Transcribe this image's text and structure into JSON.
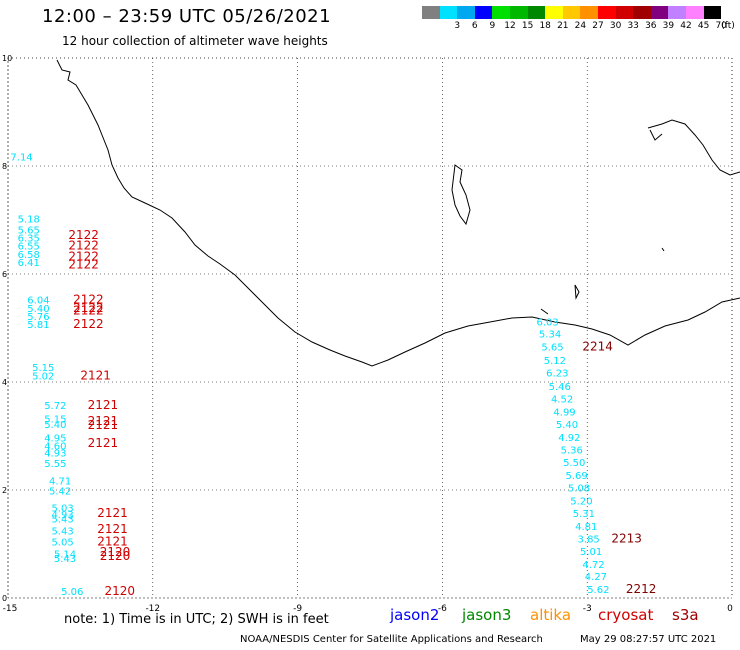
{
  "header": {
    "title": "12:00 – 23:59 UTC 05/26/2021",
    "subtitle": "12 hour collection of altimeter wave heights"
  },
  "color_scale": {
    "unit_label": "(ft)",
    "bins": [
      {
        "label": "",
        "color": "#808080"
      },
      {
        "label": "3",
        "color": "#00e0ff"
      },
      {
        "label": "6",
        "color": "#00a8f0"
      },
      {
        "label": "9",
        "color": "#0000ff"
      },
      {
        "label": "12",
        "color": "#00e000"
      },
      {
        "label": "15",
        "color": "#00b800"
      },
      {
        "label": "18",
        "color": "#008800"
      },
      {
        "label": "21",
        "color": "#ffff00"
      },
      {
        "label": "24",
        "color": "#ffc800"
      },
      {
        "label": "27",
        "color": "#ff9000"
      },
      {
        "label": "30",
        "color": "#ff0000"
      },
      {
        "label": "33",
        "color": "#d00000"
      },
      {
        "label": "36",
        "color": "#a00000"
      },
      {
        "label": "39",
        "color": "#800080"
      },
      {
        "label": "42",
        "color": "#c080ff"
      },
      {
        "label": "45",
        "color": "#ff80ff"
      },
      {
        "label": "70",
        "color": "#000000"
      }
    ]
  },
  "map": {
    "x_axis_ticks": [
      "-15",
      "-12",
      "-9",
      "-6",
      "-3",
      "0"
    ],
    "y_axis_ticks": [
      "0",
      "2",
      "4",
      "6",
      "8",
      "10"
    ],
    "grid": true
  },
  "observations": {
    "left_track_values": [
      {
        "v": "7.14",
        "lon": -14.95,
        "lat": 8.1
      },
      {
        "v": "5.18",
        "lon": -14.8,
        "lat": 6.95
      },
      {
        "v": "5.65",
        "lon": -14.8,
        "lat": 6.75
      },
      {
        "v": "6.35",
        "lon": -14.8,
        "lat": 6.6
      },
      {
        "v": "6.55",
        "lon": -14.8,
        "lat": 6.45
      },
      {
        "v": "6.58",
        "lon": -14.8,
        "lat": 6.3
      },
      {
        "v": "6.41",
        "lon": -14.8,
        "lat": 6.15
      },
      {
        "v": "6.04",
        "lon": -14.6,
        "lat": 5.45
      },
      {
        "v": "5.40",
        "lon": -14.6,
        "lat": 5.3
      },
      {
        "v": "5.76",
        "lon": -14.6,
        "lat": 5.15
      },
      {
        "v": "5.81",
        "lon": -14.6,
        "lat": 5.0
      },
      {
        "v": "5.15",
        "lon": -14.5,
        "lat": 4.2
      },
      {
        "v": "5.02",
        "lon": -14.5,
        "lat": 4.05
      },
      {
        "v": "5.72",
        "lon": -14.25,
        "lat": 3.5
      },
      {
        "v": "5.15",
        "lon": -14.25,
        "lat": 3.25
      },
      {
        "v": "5.40",
        "lon": -14.25,
        "lat": 3.15
      },
      {
        "v": "4.95",
        "lon": -14.25,
        "lat": 2.9
      },
      {
        "v": "4.60",
        "lon": -14.25,
        "lat": 2.75
      },
      {
        "v": "4.93",
        "lon": -14.25,
        "lat": 2.62
      },
      {
        "v": "5.55",
        "lon": -14.25,
        "lat": 2.43
      },
      {
        "v": "4.71",
        "lon": -14.15,
        "lat": 2.1
      },
      {
        "v": "5.42",
        "lon": -14.15,
        "lat": 1.92
      },
      {
        "v": "5.03",
        "lon": -14.1,
        "lat": 1.6
      },
      {
        "v": "4.93",
        "lon": -14.1,
        "lat": 1.48
      },
      {
        "v": "5.43",
        "lon": -14.1,
        "lat": 1.4
      },
      {
        "v": "5.43",
        "lon": -14.1,
        "lat": 1.18
      },
      {
        "v": "5.05",
        "lon": -14.1,
        "lat": 0.97
      },
      {
        "v": "5.14",
        "lon": -14.05,
        "lat": 0.75
      },
      {
        "v": "5.43",
        "lon": -14.05,
        "lat": 0.67
      },
      {
        "v": "5.06",
        "lon": -13.9,
        "lat": 0.06
      }
    ],
    "left_track_times": [
      {
        "t": "2122",
        "lon": -13.75,
        "lat": 6.65
      },
      {
        "t": "2122",
        "lon": -13.75,
        "lat": 6.45
      },
      {
        "t": "2122",
        "lon": -13.75,
        "lat": 6.25
      },
      {
        "t": "2122",
        "lon": -13.75,
        "lat": 6.1
      },
      {
        "t": "2122",
        "lon": -13.65,
        "lat": 5.45
      },
      {
        "t": "2122",
        "lon": -13.65,
        "lat": 5.3
      },
      {
        "t": "2122",
        "lon": -13.65,
        "lat": 5.25
      },
      {
        "t": "2122",
        "lon": -13.65,
        "lat": 5.0
      },
      {
        "t": "2121",
        "lon": -13.5,
        "lat": 4.05
      },
      {
        "t": "2121",
        "lon": -13.35,
        "lat": 3.5
      },
      {
        "t": "2121",
        "lon": -13.35,
        "lat": 3.2
      },
      {
        "t": "2121",
        "lon": -13.35,
        "lat": 3.13
      },
      {
        "t": "2121",
        "lon": -13.35,
        "lat": 2.8
      },
      {
        "t": "2121",
        "lon": -13.15,
        "lat": 1.5
      },
      {
        "t": "2121",
        "lon": -13.15,
        "lat": 1.2
      },
      {
        "t": "2121",
        "lon": -13.15,
        "lat": 0.97
      },
      {
        "t": "2120",
        "lon": -13.1,
        "lat": 0.78
      },
      {
        "t": "2120",
        "lon": -13.1,
        "lat": 0.7
      },
      {
        "t": "2120",
        "lon": -13.0,
        "lat": 0.06
      }
    ],
    "right_track_values": [
      {
        "v": "6.03",
        "lon": -4.05,
        "lat": 5.05
      },
      {
        "v": "5.34",
        "lon": -4.0,
        "lat": 4.82
      },
      {
        "v": "5.65",
        "lon": -3.95,
        "lat": 4.58
      },
      {
        "v": "5.12",
        "lon": -3.9,
        "lat": 4.33
      },
      {
        "v": "6.23",
        "lon": -3.85,
        "lat": 4.1
      },
      {
        "v": "5.46",
        "lon": -3.8,
        "lat": 3.85
      },
      {
        "v": "4.52",
        "lon": -3.75,
        "lat": 3.62
      },
      {
        "v": "4.99",
        "lon": -3.7,
        "lat": 3.38
      },
      {
        "v": "5.40",
        "lon": -3.65,
        "lat": 3.15
      },
      {
        "v": "4.92",
        "lon": -3.6,
        "lat": 2.91
      },
      {
        "v": "5.36",
        "lon": -3.55,
        "lat": 2.68
      },
      {
        "v": "5.50",
        "lon": -3.5,
        "lat": 2.44
      },
      {
        "v": "5.69",
        "lon": -3.45,
        "lat": 2.2
      },
      {
        "v": "5.08",
        "lon": -3.4,
        "lat": 1.97
      },
      {
        "v": "5.20",
        "lon": -3.35,
        "lat": 1.73
      },
      {
        "v": "5.31",
        "lon": -3.3,
        "lat": 1.5
      },
      {
        "v": "4.81",
        "lon": -3.25,
        "lat": 1.26
      },
      {
        "v": "3.85",
        "lon": -3.2,
        "lat": 1.03
      },
      {
        "v": "5.01",
        "lon": -3.15,
        "lat": 0.8
      },
      {
        "v": "4.72",
        "lon": -3.1,
        "lat": 0.56
      },
      {
        "v": "4.27",
        "lon": -3.05,
        "lat": 0.33
      },
      {
        "v": "5.62",
        "lon": -3.0,
        "lat": 0.09
      },
      {
        "v": "--",
        "lon": -3.9,
        "lat": 5.35
      }
    ],
    "right_track_times": [
      {
        "t": "2214",
        "lon": -3.1,
        "lat": 4.58
      },
      {
        "t": "2213",
        "lon": -2.5,
        "lat": 1.03
      },
      {
        "t": "2212",
        "lon": -2.2,
        "lat": 0.09
      }
    ]
  },
  "footer": {
    "note": "note:  1) Time is in UTC;  2) SWH is in feet",
    "legend": [
      {
        "name": "jason2",
        "color": "#0000ff"
      },
      {
        "name": "jason3",
        "color": "#008800"
      },
      {
        "name": "altika",
        "color": "#ff9000"
      },
      {
        "name": "cryosat",
        "color": "#d00000"
      },
      {
        "name": "s3a",
        "color": "#a00000"
      }
    ],
    "credit": "NOAA/NESDIS Center for Satellite Applications and Research",
    "timestamp": "May 29 08:27:57 UTC 2021"
  }
}
